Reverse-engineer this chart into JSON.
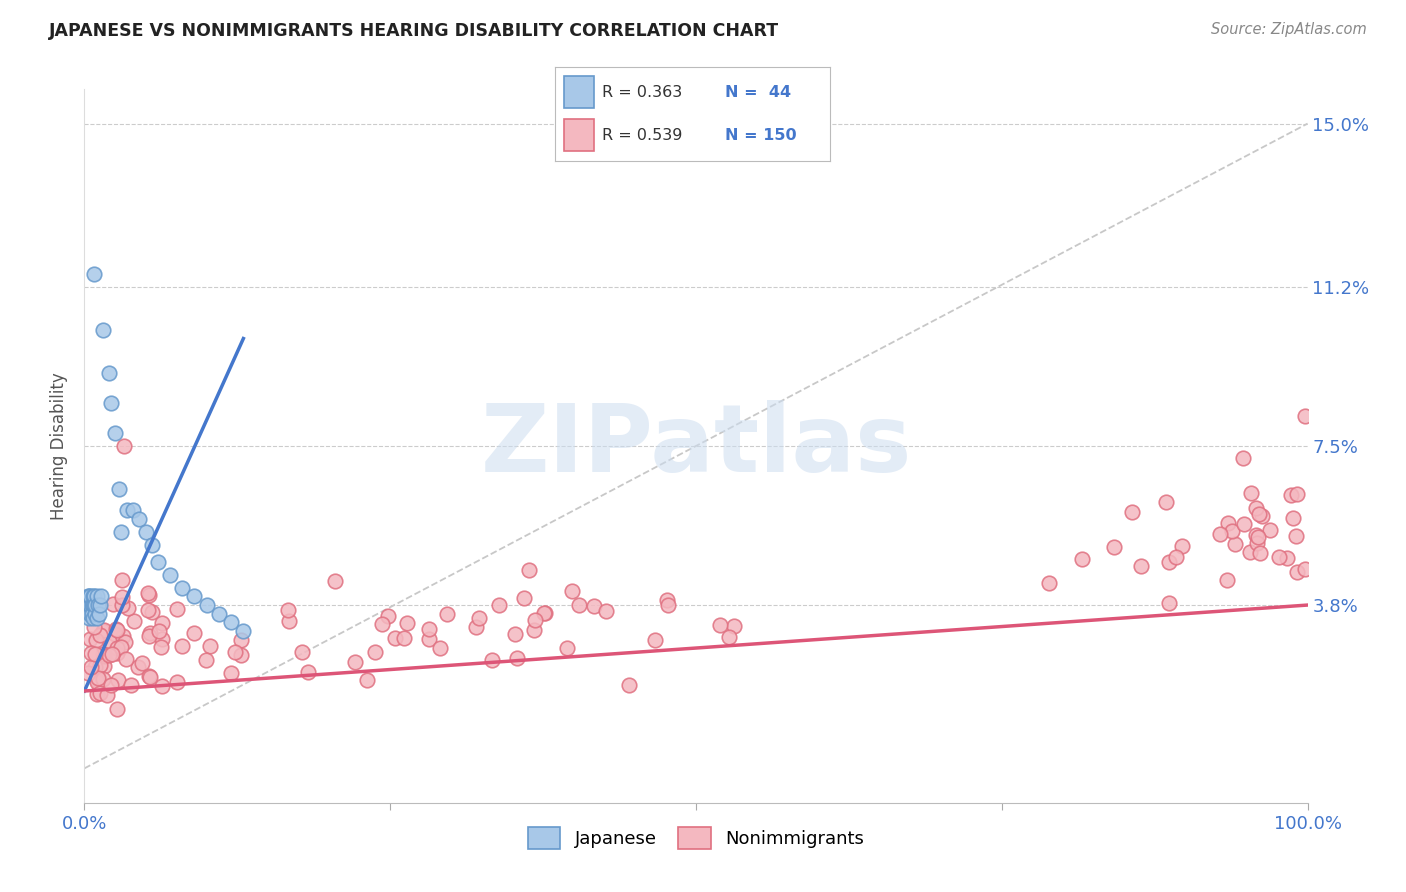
{
  "title": "JAPANESE VS NONIMMIGRANTS HEARING DISABILITY CORRELATION CHART",
  "source": "Source: ZipAtlas.com",
  "ylabel": "Hearing Disability",
  "xlim": [
    0,
    1.0
  ],
  "ylim": [
    -0.008,
    0.158
  ],
  "diagonal_color": "#c8c8c8",
  "japanese_face_color": "#a8c8e8",
  "japanese_edge_color": "#6699cc",
  "nonimmigrant_face_color": "#f4b8c0",
  "nonimmigrant_edge_color": "#e07080",
  "regression_japanese_color": "#4477cc",
  "regression_nonimmigrant_color": "#dd5577",
  "legend_R_japanese": "0.363",
  "legend_N_japanese": "44",
  "legend_R_nonimmigrant": "0.539",
  "legend_N_nonimmigrant": "150",
  "watermark": "ZIPatlas",
  "background_color": "#ffffff",
  "grid_color": "#cccccc",
  "ytick_vals": [
    0.038,
    0.075,
    0.112,
    0.15
  ],
  "ytick_labels": [
    "3.8%",
    "7.5%",
    "11.2%",
    "15.0%"
  ],
  "title_color": "#222222",
  "source_color": "#888888",
  "axis_tick_color": "#4477cc",
  "ylabel_color": "#555555"
}
